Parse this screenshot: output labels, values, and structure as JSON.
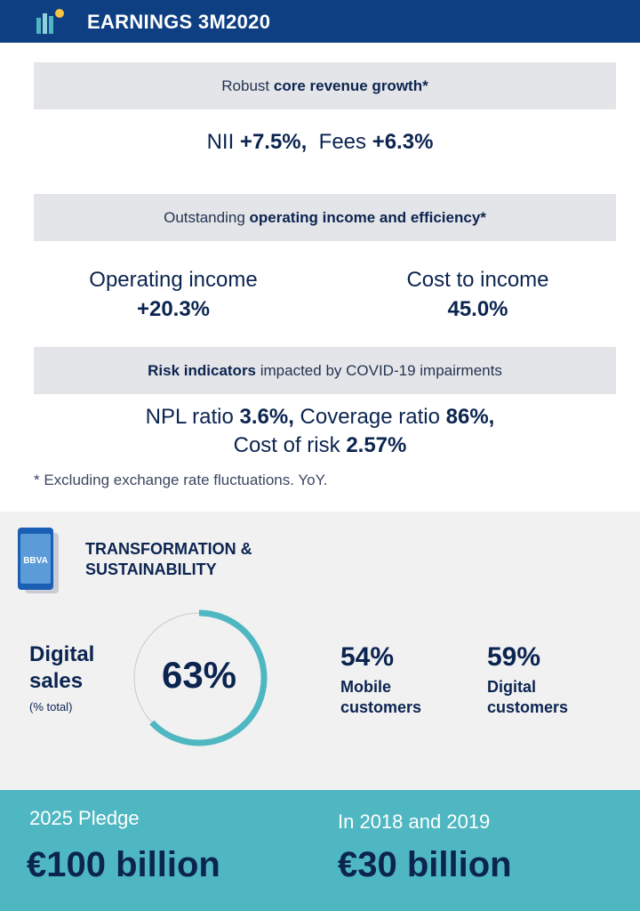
{
  "header": {
    "title": "EARNINGS 3M2020",
    "colors": {
      "bar": "#0e3f82",
      "logo_bars": "#4fb7c1",
      "logo_dot": "#f6c343"
    }
  },
  "revenue": {
    "band_prefix": "Robust ",
    "band_bold": "core revenue growth*",
    "nii_label": "NII ",
    "nii_value": "+7.5%,",
    "fees_label": "Fees ",
    "fees_value": "+6.3%"
  },
  "operating": {
    "band_prefix": "Outstanding ",
    "band_bold": "operating income and efficiency*",
    "op_income_label": "Operating income",
    "op_income_value": "+20.3%",
    "cti_label": "Cost to income",
    "cti_value": "45.0%"
  },
  "risk": {
    "band_bold": "Risk indicators",
    "band_suffix": " impacted by COVID-19 impairments",
    "npl_label": "NPL ratio ",
    "npl_value": "3.6%,",
    "coverage_label": " Coverage ratio ",
    "coverage_value": "86%,",
    "cor_label": "Cost of risk ",
    "cor_value": "2.57%"
  },
  "footnote": "* Excluding exchange rate fluctuations. YoY.",
  "transformation": {
    "phone_brand": "BBVA",
    "title_line1": "TRANSFORMATION &",
    "title_line2": "SUSTAINABILITY",
    "digital_sales_line1": "Digital",
    "digital_sales_line2": "sales",
    "digital_sales_sub": "(% total)",
    "digital_sales_value": "63%",
    "digital_sales_fraction": 0.63,
    "mobile_value": "54%",
    "mobile_label_line1": "Mobile",
    "mobile_label_line2": "customers",
    "digital_value": "59%",
    "digital_label_line1": "Digital",
    "digital_label_line2": "customers",
    "accent": "#4fb7c1"
  },
  "pledge": {
    "left_caption": "2025 Pledge",
    "left_value": "€100 billion",
    "right_caption": "In 2018 and 2019",
    "right_value": "€30 billion"
  }
}
